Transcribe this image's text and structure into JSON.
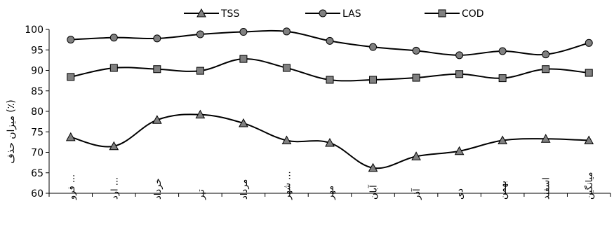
{
  "chart_data": {
    "type": "line",
    "title": "",
    "xlabel": "",
    "ylabel": "میزان حذف (٪)",
    "ylim": [
      60,
      100
    ],
    "yticks": [
      60,
      65,
      70,
      75,
      80,
      85,
      90,
      95,
      100
    ],
    "grid": false,
    "legend_position": "top",
    "categories": [
      "... فرو",
      "... ارد",
      "خرداد",
      "تیر",
      "مرداد",
      "... شهر",
      "مهر",
      "آبان",
      "آذر",
      "دی",
      "بهمن",
      "اسفند",
      "میانگین"
    ],
    "series": [
      {
        "name": "TSS",
        "marker": "triangle",
        "values": [
          73.7,
          71.5,
          77.9,
          79.2,
          77.1,
          72.9,
          72.3,
          66.2,
          69.0,
          70.3,
          72.9,
          73.3,
          72.9
        ]
      },
      {
        "name": "LAS",
        "marker": "circle",
        "values": [
          97.5,
          98.0,
          97.8,
          98.8,
          99.4,
          99.5,
          97.2,
          95.7,
          94.8,
          93.7,
          94.7,
          93.9,
          96.7
        ]
      },
      {
        "name": "COD",
        "marker": "square",
        "values": [
          88.4,
          90.6,
          90.3,
          89.9,
          92.8,
          90.6,
          87.7,
          87.7,
          88.2,
          89.1,
          88.1,
          90.3,
          89.4
        ]
      }
    ],
    "colors": {
      "line": "#000000",
      "marker_fill": "#808080",
      "marker_stroke": "#000000"
    }
  }
}
